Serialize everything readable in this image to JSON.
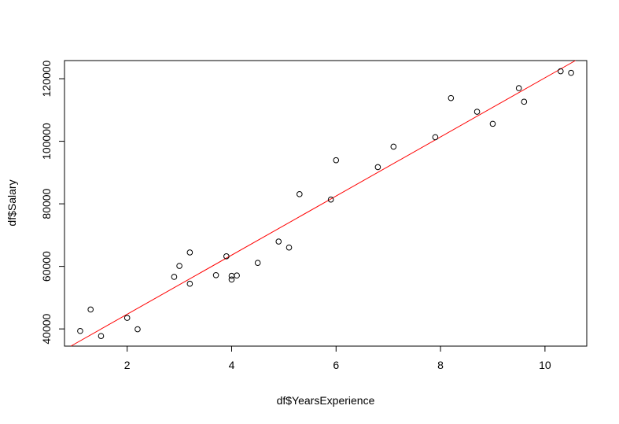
{
  "chart_data": {
    "type": "scatter",
    "title": "",
    "xlabel": "df$YearsExperience",
    "ylabel": "df$Salary",
    "xlim": [
      0.8,
      10.8
    ],
    "ylim": [
      34500,
      125800
    ],
    "x_ticks": [
      2,
      4,
      6,
      8,
      10
    ],
    "x_tick_labels": [
      "2",
      "4",
      "6",
      "8",
      "10"
    ],
    "y_ticks": [
      40000,
      60000,
      80000,
      100000,
      120000
    ],
    "y_tick_labels": [
      "40000",
      "60000",
      "80000",
      "100000",
      "120000"
    ],
    "grid": false,
    "point_style": "open-circle",
    "point_color": "#000000",
    "line_color": "#ff0000",
    "points": {
      "x": [
        1.1,
        1.3,
        1.5,
        2.0,
        2.2,
        2.9,
        3.0,
        3.2,
        3.2,
        3.7,
        3.9,
        4.0,
        4.0,
        4.1,
        4.5,
        4.9,
        5.1,
        5.3,
        5.9,
        6.0,
        6.8,
        7.1,
        7.9,
        8.2,
        8.7,
        9.0,
        9.5,
        9.6,
        10.3,
        10.5
      ],
      "y": [
        39343,
        46205,
        37731,
        43525,
        39891,
        56642,
        60150,
        54445,
        64445,
        57189,
        63218,
        55794,
        56957,
        57081,
        61111,
        67938,
        66029,
        83088,
        81363,
        93940,
        91738,
        98273,
        101302,
        113812,
        109431,
        105582,
        116969,
        112635,
        122391,
        121872
      ]
    },
    "regression_line": {
      "intercept": 25792,
      "slope": 9450
    }
  }
}
